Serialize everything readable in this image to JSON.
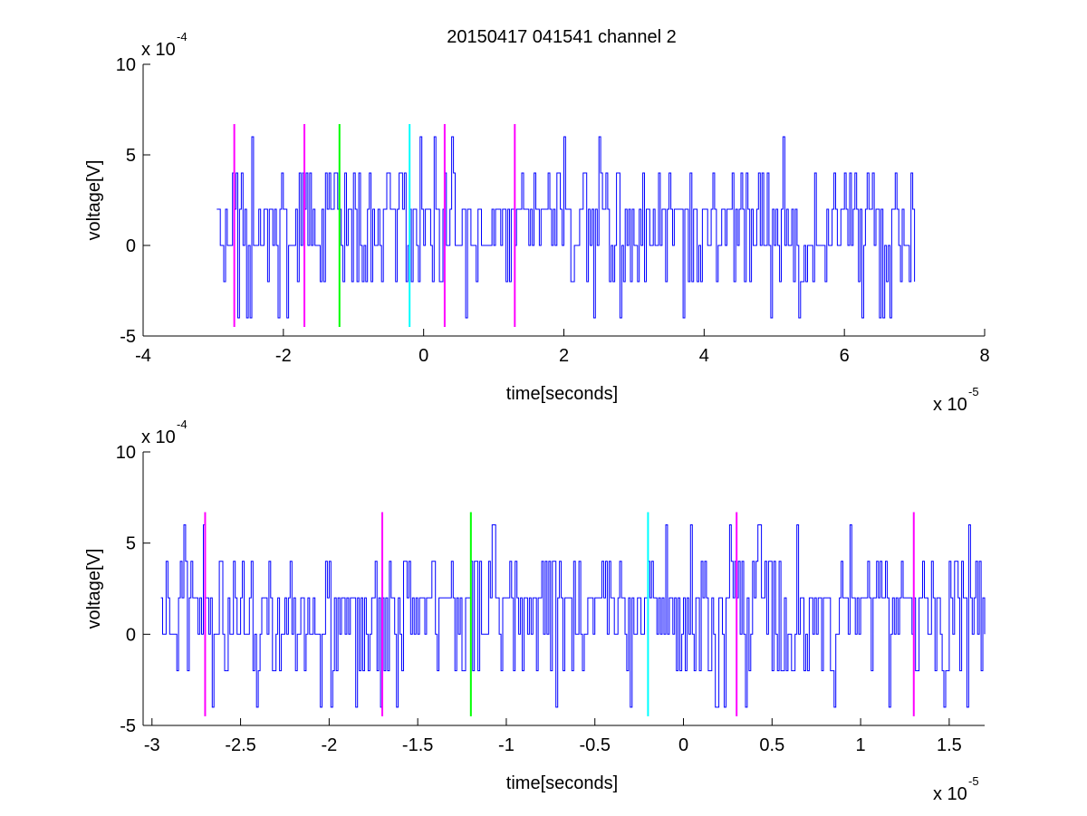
{
  "figure": {
    "title": "20150417 041541 channel 2",
    "colors": {
      "trace": "#0000ff",
      "magenta": "#ff00ff",
      "green": "#00ff00",
      "cyan": "#00ffff",
      "axes": "#000000",
      "background": "#ffffff"
    }
  },
  "chart_data": [
    {
      "type": "line",
      "title": "20150417 041541 channel 2",
      "xlabel": "time[seconds]",
      "ylabel": "voltage[V]",
      "x_exponent_label": "x 10",
      "x_exponent": "-5",
      "y_exponent_label": "x 10",
      "y_exponent": "-4",
      "xlim": [
        -4,
        8
      ],
      "ylim": [
        -5,
        10
      ],
      "x_ticks": [
        -4,
        -2,
        0,
        2,
        4,
        6,
        8
      ],
      "x_tick_labels": [
        "-4",
        "-2",
        "0",
        "2",
        "4",
        "6",
        "8"
      ],
      "y_ticks": [
        -5,
        0,
        5,
        10
      ],
      "y_tick_labels": [
        "-5",
        "0",
        "5",
        "10"
      ],
      "grid": false,
      "legend": "none",
      "series": [
        {
          "style": "noisy voltage trace",
          "color": "#0000ff",
          "x_range": [
            -2.95,
            7.0
          ],
          "sample_step": 0.025,
          "levels": [
            -4,
            -2,
            0,
            2,
            4,
            6
          ],
          "typical_level": 2
        }
      ],
      "markers": [
        {
          "x": -2.7,
          "color": "#ff00ff",
          "ymin": -4.5,
          "ymax": 6.7
        },
        {
          "x": -1.7,
          "color": "#ff00ff",
          "ymin": -4.5,
          "ymax": 6.7
        },
        {
          "x": -1.2,
          "color": "#00ff00",
          "ymin": -4.5,
          "ymax": 6.7
        },
        {
          "x": -0.2,
          "color": "#00ffff",
          "ymin": -4.5,
          "ymax": 6.7
        },
        {
          "x": 0.3,
          "color": "#ff00ff",
          "ymin": -4.5,
          "ymax": 6.7
        },
        {
          "x": 1.3,
          "color": "#ff00ff",
          "ymin": -4.5,
          "ymax": 6.7
        }
      ]
    },
    {
      "type": "line",
      "title": "",
      "xlabel": "time[seconds]",
      "ylabel": "voltage[V]",
      "x_exponent_label": "x 10",
      "x_exponent": "-5",
      "y_exponent_label": "x 10",
      "y_exponent": "-4",
      "xlim": [
        -3.05,
        1.7
      ],
      "ylim": [
        -5,
        10
      ],
      "x_ticks": [
        -3,
        -2.5,
        -2,
        -1.5,
        -1,
        -0.5,
        0,
        0.5,
        1,
        1.5
      ],
      "x_tick_labels": [
        "-3",
        "-2.5",
        "-2",
        "-1.5",
        "-1",
        "-0.5",
        "0",
        "0.5",
        "1",
        "1.5"
      ],
      "y_ticks": [
        -5,
        0,
        5,
        10
      ],
      "y_tick_labels": [
        "-5",
        "0",
        "5",
        "10"
      ],
      "grid": false,
      "legend": "none",
      "series": [
        {
          "style": "noisy voltage trace (zoomed)",
          "color": "#0000ff",
          "x_range": [
            -2.95,
            1.7
          ],
          "sample_step": 0.01,
          "levels": [
            -4,
            -2,
            0,
            2,
            4,
            6
          ],
          "typical_level": 2
        }
      ],
      "markers": [
        {
          "x": -2.7,
          "color": "#ff00ff",
          "ymin": -4.5,
          "ymax": 6.7
        },
        {
          "x": -1.7,
          "color": "#ff00ff",
          "ymin": -4.5,
          "ymax": 6.7
        },
        {
          "x": -1.2,
          "color": "#00ff00",
          "ymin": -4.5,
          "ymax": 6.7
        },
        {
          "x": -0.2,
          "color": "#00ffff",
          "ymin": -4.5,
          "ymax": 6.7
        },
        {
          "x": 0.3,
          "color": "#ff00ff",
          "ymin": -4.5,
          "ymax": 6.7
        },
        {
          "x": 1.3,
          "color": "#ff00ff",
          "ymin": -4.5,
          "ymax": 6.7
        }
      ]
    }
  ]
}
